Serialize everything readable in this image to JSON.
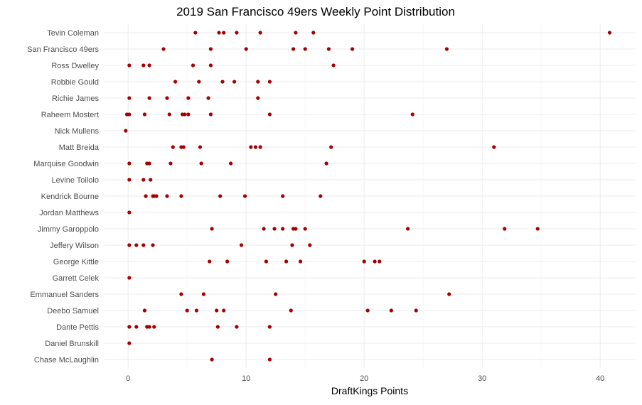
{
  "chart_data": {
    "type": "scatter",
    "title": "2019 San Francisco 49ers Weekly Point Distribution",
    "xlabel": "DraftKings Points",
    "ylabel": "",
    "xlim": [
      -2,
      43
    ],
    "x_ticks": [
      0,
      10,
      20,
      30,
      40
    ],
    "grid": true,
    "point_color": "#a50000",
    "categories": [
      "Tevin Coleman",
      "San Francisco 49ers",
      "Ross Dwelley",
      "Robbie Gould",
      "Richie James",
      "Raheem Mostert",
      "Nick Mullens",
      "Matt Breida",
      "Marquise Goodwin",
      "Levine Toilolo",
      "Kendrick Bourne",
      "Jordan Matthews",
      "Jimmy Garoppolo",
      "Jeffery Wilson",
      "George Kittle",
      "Garrett Celek",
      "Emmanuel Sanders",
      "Deebo Samuel",
      "Dante Pettis",
      "Daniel Brunskill",
      "Chase McLaughlin"
    ],
    "values": [
      [
        5.7,
        7.7,
        8.1,
        9.2,
        11.2,
        14.2,
        15.7,
        40.8
      ],
      [
        3.0,
        7.0,
        10.0,
        14.0,
        15.0,
        17.0,
        19.0,
        27.0
      ],
      [
        0.1,
        1.3,
        1.8,
        5.5,
        7.0,
        17.4
      ],
      [
        4.0,
        6.0,
        8.0,
        9.0,
        11.0,
        12.0
      ],
      [
        0.1,
        1.8,
        3.3,
        5.1,
        6.8,
        11.0
      ],
      [
        -0.1,
        0.1,
        1.4,
        3.5,
        4.6,
        4.8,
        5.1,
        7.0,
        12.0,
        24.1
      ],
      [
        -0.2
      ],
      [
        3.8,
        4.5,
        4.7,
        6.1,
        10.4,
        10.8,
        11.2,
        17.2,
        31.0
      ],
      [
        0.1,
        1.6,
        1.8,
        3.6,
        6.2,
        8.7,
        16.8
      ],
      [
        0.1,
        1.3,
        1.9
      ],
      [
        1.5,
        2.1,
        2.2,
        2.4,
        3.3,
        4.5,
        7.8,
        9.9,
        13.1,
        16.3
      ],
      [
        0.1
      ],
      [
        7.1,
        11.5,
        12.4,
        13.1,
        14.0,
        14.2,
        15.0,
        23.7,
        31.9,
        34.7
      ],
      [
        0.1,
        0.7,
        1.3,
        2.1,
        9.6,
        13.9,
        15.4
      ],
      [
        6.9,
        8.4,
        11.7,
        13.4,
        14.6,
        20.0,
        20.9,
        21.3
      ],
      [
        0.1
      ],
      [
        4.5,
        6.4,
        12.5,
        27.2
      ],
      [
        1.4,
        5.0,
        5.8,
        7.5,
        8.1,
        13.8,
        20.3,
        22.3,
        24.4
      ],
      [
        0.1,
        0.7,
        1.6,
        1.8,
        2.2,
        7.6,
        9.2,
        12.0
      ],
      [
        0.1
      ],
      [
        7.1,
        12.0
      ]
    ]
  }
}
